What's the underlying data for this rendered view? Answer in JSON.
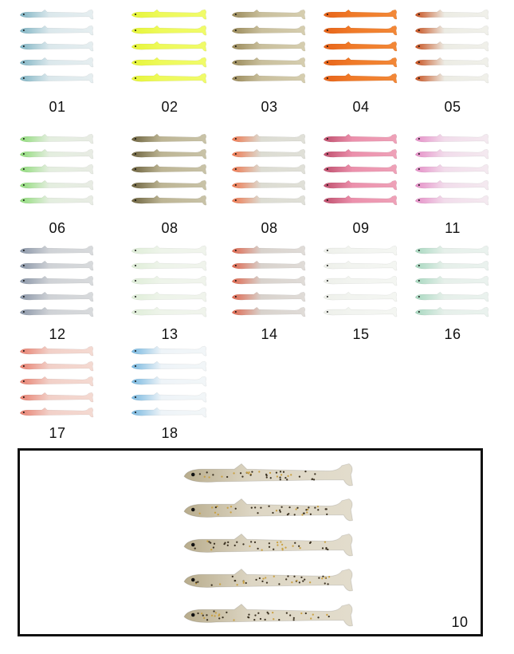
{
  "variants": [
    {
      "label": "01",
      "head": "#7fb4c4",
      "body": "#dbe8ec",
      "tail": "#e6eef0"
    },
    {
      "label": "02",
      "head": "#e6f53a",
      "body": "#eefa5a",
      "tail": "#f0fb6a"
    },
    {
      "label": "03",
      "head": "#9a8a5a",
      "body": "#c9bf9c",
      "tail": "#d6ceb0"
    },
    {
      "label": "04",
      "head": "#e8641a",
      "body": "#f07a28",
      "tail": "#f28838"
    },
    {
      "label": "05",
      "head": "#c8501e",
      "body": "#ecece4",
      "tail": "#f0f0ea"
    },
    {
      "label": "06",
      "head": "#8fdc7a",
      "body": "#e4eedf",
      "tail": "#e8ece4"
    },
    {
      "label": "08",
      "head": "#6e6440",
      "body": "#bdb594",
      "tail": "#c9c3a8"
    },
    {
      "label": "08",
      "head": "#f07850",
      "body": "#dcdcd2",
      "tail": "#e0e0d8"
    },
    {
      "label": "09",
      "head": "#c0506e",
      "body": "#ec90ac",
      "tail": "#eea2b8"
    },
    {
      "label": "11",
      "head": "#e690c8",
      "body": "#f2dceb",
      "tail": "#f4eaf0"
    },
    {
      "label": "12",
      "head": "#8a96a8",
      "body": "#cfd2d6",
      "tail": "#d8dadc"
    },
    {
      "label": "13",
      "head": "#dfeed8",
      "body": "#eef4ea",
      "tail": "#f0f4ec"
    },
    {
      "label": "14",
      "head": "#e06850",
      "body": "#d8d2cc",
      "tail": "#e0dcd8"
    },
    {
      "label": "15",
      "head": "#eef0ea",
      "body": "#f2f4f0",
      "tail": "#f4f6f2"
    },
    {
      "label": "16",
      "head": "#a8d8c0",
      "body": "#e6f0ea",
      "tail": "#eaf2ee"
    },
    {
      "label": "17",
      "head": "#e88070",
      "body": "#f2d0c8",
      "tail": "#f4dad2"
    },
    {
      "label": "18",
      "head": "#78b8e0",
      "body": "#eef4f8",
      "tail": "#f2f6f8"
    }
  ],
  "featured": {
    "label": "10",
    "head": "#b8ac8c",
    "body": "#ddd6c4",
    "tail": "#e2dccc"
  }
}
